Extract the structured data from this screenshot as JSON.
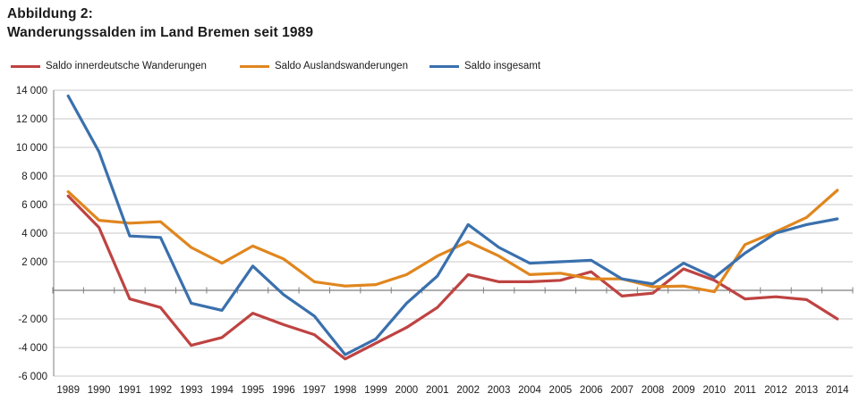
{
  "chart_data": {
    "type": "line",
    "figure_label": "Abbildung 2:",
    "title": "Wanderungssalden im Land Bremen seit 1989",
    "categories": [
      "1989",
      "1990",
      "1991",
      "1992",
      "1993",
      "1994",
      "1995",
      "1996",
      "1997",
      "1998",
      "1999",
      "2000",
      "2001",
      "2002",
      "2003",
      "2004",
      "2005",
      "2006",
      "2007",
      "2008",
      "2009",
      "2010",
      "2011",
      "2012",
      "2013",
      "2014"
    ],
    "series": [
      {
        "name": "Saldo innerdeutsche Wanderungen",
        "color": "#BE4342",
        "values": [
          6600,
          4400,
          -600,
          -1200,
          -3850,
          -3300,
          -1600,
          -2400,
          -3100,
          -4800,
          -3700,
          -2600,
          -1200,
          1100,
          600,
          600,
          700,
          1300,
          -400,
          -200,
          1500,
          700,
          -600,
          -450,
          -650,
          -2000
        ]
      },
      {
        "name": "Saldo Auslandswanderungen",
        "color": "#E0861E",
        "values": [
          6900,
          4900,
          4700,
          4800,
          3000,
          1900,
          3100,
          2200,
          600,
          300,
          400,
          1100,
          2400,
          3400,
          2400,
          1100,
          1200,
          800,
          800,
          250,
          300,
          -100,
          3200,
          4100,
          5100,
          7000
        ]
      },
      {
        "name": "Saldo insgesamt",
        "color": "#3A70AD",
        "values": [
          13600,
          9700,
          3800,
          3700,
          -900,
          -1400,
          1700,
          -300,
          -1800,
          -4500,
          -3400,
          -900,
          1000,
          4600,
          3000,
          1900,
          2000,
          2100,
          800,
          450,
          1900,
          900,
          2600,
          4000,
          4600,
          5000
        ]
      }
    ],
    "ylim": [
      -6000,
      14000
    ],
    "ystep": 2000,
    "ytick_labels_top_down": [
      "14 000",
      "12 000",
      "10 000",
      "8 000",
      "6 000",
      "4 000",
      "2 000",
      "",
      "-2 000",
      "-4 000",
      "-6 000"
    ],
    "grid": "horizontal",
    "legend_position": "top-left",
    "colors": {
      "gridline": "#c9c9c9",
      "axis": "#7f7f7f",
      "text": "#1b1b1b"
    }
  }
}
